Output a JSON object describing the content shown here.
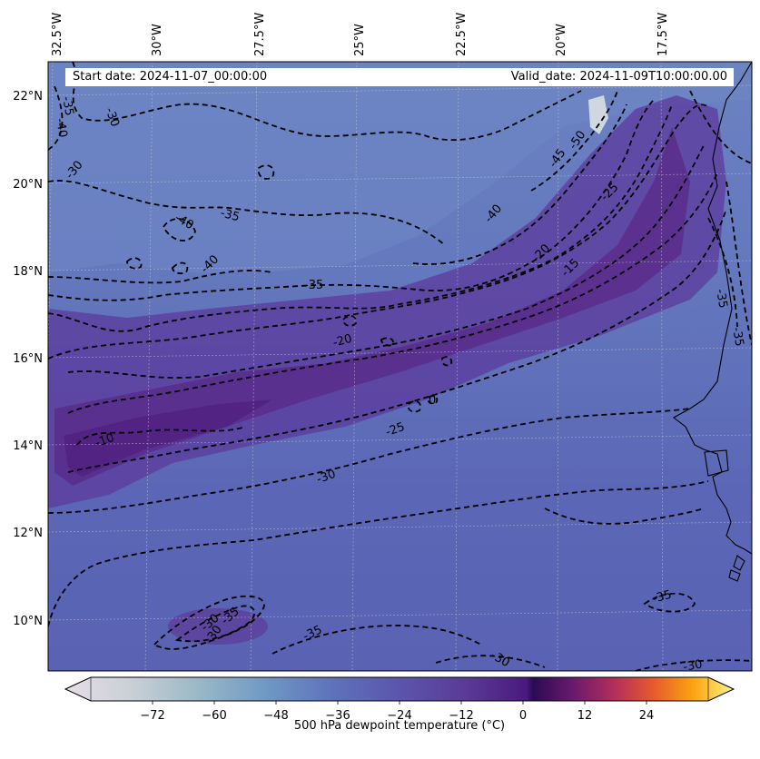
{
  "header": {
    "start_date": "Start date: 2024-11-07_00:00:00",
    "valid_date": "Valid_date: 2024-11-09T10:00:00.00"
  },
  "map": {
    "variable": "500 hPa dewpoint temperature",
    "longitude_ticks": [
      "32.5°W",
      "30°W",
      "27.5°W",
      "25°W",
      "22.5°W",
      "20°W",
      "17.5°W"
    ],
    "latitude_ticks": [
      "22°N",
      "20°N",
      "18°N",
      "16°N",
      "14°N",
      "12°N",
      "10°N"
    ],
    "contour_labels": [
      "-35",
      "-40",
      "-30",
      "-30",
      "-40",
      "-35",
      "-40",
      "-35",
      "-45",
      "-50",
      "-40",
      "-25",
      "-20",
      "-15",
      "-35",
      "-35",
      "-20",
      "-10",
      "-25",
      "-30",
      "-35",
      "-30",
      "-30",
      "-35",
      "-30",
      "-30",
      "-35",
      "0"
    ],
    "colors": {
      "field_base": "#5a63b4",
      "field_north": "#6a7cc0",
      "plume": "#5a2a8e",
      "plume_core": "#4a1d7a"
    }
  },
  "colorbar": {
    "label": "500 hPa dewpoint temperature (°C)",
    "ticks": [
      "−72",
      "−60",
      "−48",
      "−36",
      "−24",
      "−12",
      "0",
      "12",
      "24"
    ],
    "range": [
      -84,
      36
    ],
    "extend": "both"
  }
}
